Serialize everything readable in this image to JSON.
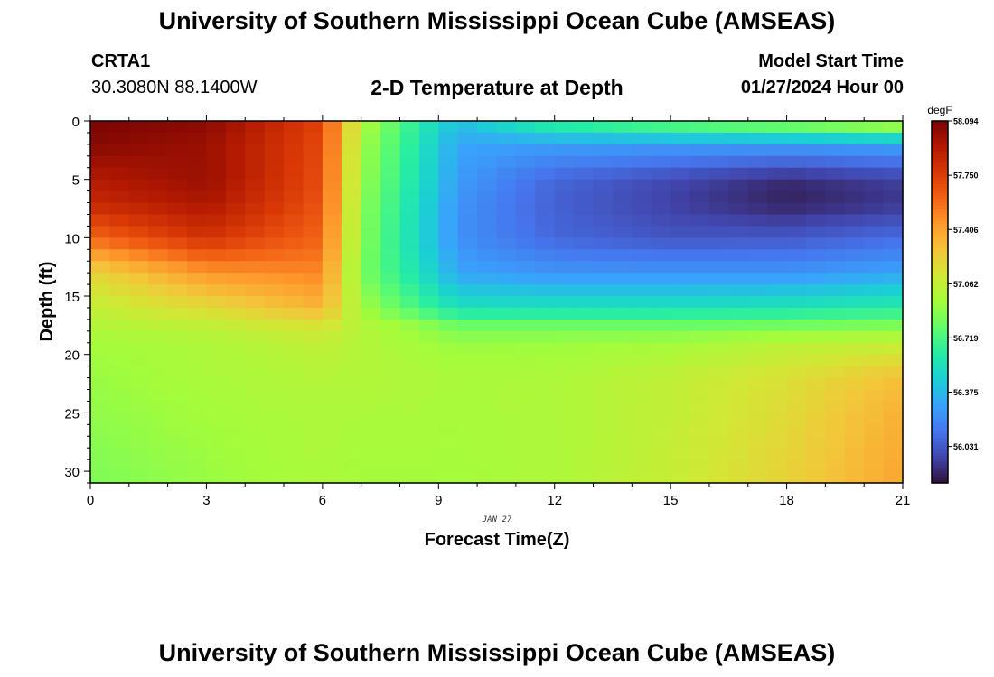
{
  "header": {
    "title": "University of Southern Mississippi Ocean Cube (AMSEAS)",
    "station": "CRTA1",
    "coordinates": "30.3080N  88.1400W",
    "subtitle": "2-D Temperature at Depth",
    "model_start_label": "Model Start Time",
    "model_start_value": "01/27/2024 Hour 00"
  },
  "footer": {
    "title": "University of Southern Mississippi Ocean Cube (AMSEAS)"
  },
  "chart_data": {
    "type": "heatmap",
    "title": "2-D Temperature at Depth",
    "xlabel": "Forecast Time(Z)",
    "ylabel": "Depth (ft)",
    "x_range": [
      0,
      21
    ],
    "y_range": [
      0,
      31
    ],
    "y_inverted": true,
    "x_ticks": [
      0,
      3,
      6,
      9,
      12,
      15,
      18,
      21
    ],
    "y_ticks": [
      0,
      5,
      10,
      15,
      20,
      25,
      30
    ],
    "date_label": "JAN 27",
    "colorbar": {
      "unit": "degF",
      "min": 55.8,
      "max": 58.094,
      "tick_values": [
        58.094,
        57.75,
        57.406,
        57.062,
        56.719,
        56.375,
        56.031
      ],
      "tick_labels": [
        "58.094",
        "57.750",
        "57.406",
        "57.062",
        "56.719",
        "56.375",
        "56.031"
      ],
      "colors": [
        "#30123b",
        "#4145ab",
        "#4675ed",
        "#39a2fc",
        "#1bcfd4",
        "#24eca6",
        "#61fc6c",
        "#a4fc3b",
        "#d1e834",
        "#f3c63a",
        "#fe9b2d",
        "#f36315",
        "#d93806",
        "#b11901",
        "#7a0403"
      ]
    },
    "grid": {
      "times": [
        0,
        3,
        6,
        7,
        8.5,
        9.5,
        12,
        15,
        18,
        21
      ],
      "depths": [
        0,
        2,
        5,
        7,
        10,
        13,
        16,
        17.5,
        19,
        22,
        25,
        31
      ],
      "temperatures": [
        [
          58.09,
          58.05,
          57.72,
          57.0,
          56.62,
          56.4,
          56.7,
          56.85,
          56.95,
          57.1
        ],
        [
          58.06,
          58.0,
          57.7,
          56.95,
          56.58,
          56.3,
          56.28,
          56.28,
          56.28,
          56.3
        ],
        [
          57.92,
          58.0,
          57.68,
          56.92,
          56.55,
          56.27,
          56.08,
          55.98,
          55.88,
          55.95
        ],
        [
          57.85,
          57.95,
          57.66,
          56.9,
          56.52,
          56.24,
          56.06,
          55.95,
          55.85,
          55.92
        ],
        [
          57.6,
          57.8,
          57.6,
          56.88,
          56.5,
          56.23,
          56.08,
          56.02,
          56.03,
          56.1
        ],
        [
          57.2,
          57.45,
          57.5,
          56.85,
          56.55,
          56.3,
          56.24,
          56.24,
          56.24,
          56.3
        ],
        [
          57.05,
          57.18,
          57.35,
          56.95,
          56.7,
          56.55,
          56.55,
          56.55,
          56.57,
          56.62
        ],
        [
          57.0,
          57.05,
          57.15,
          57.0,
          56.9,
          56.8,
          56.8,
          56.8,
          56.82,
          56.85
        ],
        [
          56.95,
          56.98,
          57.05,
          57.0,
          56.95,
          56.92,
          56.93,
          56.95,
          57.02,
          57.05
        ],
        [
          56.92,
          56.97,
          57.0,
          57.0,
          56.98,
          56.97,
          56.98,
          57.05,
          57.15,
          57.3
        ],
        [
          56.9,
          56.95,
          56.98,
          56.97,
          56.97,
          56.96,
          56.98,
          57.05,
          57.18,
          57.36
        ],
        [
          56.85,
          56.92,
          56.97,
          56.95,
          56.95,
          56.95,
          56.98,
          57.07,
          57.22,
          57.4
        ]
      ]
    }
  }
}
